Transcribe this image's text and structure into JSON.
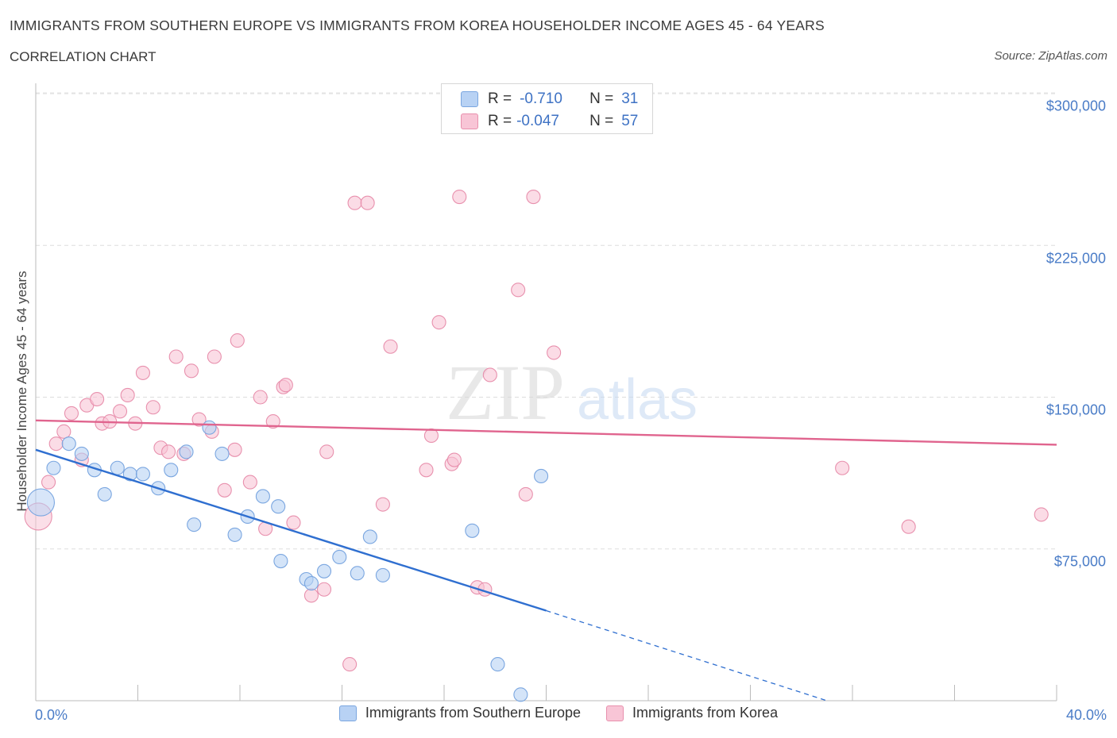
{
  "header": {
    "title": "IMMIGRANTS FROM SOUTHERN EUROPE VS IMMIGRANTS FROM KOREA HOUSEHOLDER INCOME AGES 45 - 64 YEARS",
    "subtitle": "CORRELATION CHART",
    "source": "Source: ZipAtlas.com"
  },
  "legend": {
    "r_label": "R =",
    "n_label": "N =",
    "rows": [
      {
        "r": "-0.710",
        "n": "31"
      },
      {
        "r": "-0.047",
        "n": "57"
      }
    ]
  },
  "watermark": {
    "zip": "ZIP",
    "atlas": "atlas"
  },
  "colors": {
    "blue_fill": "#b8d2f4",
    "blue_stroke": "#7aa6e0",
    "blue_line": "#2f6fd0",
    "pink_fill": "#f8c5d6",
    "pink_stroke": "#e890ad",
    "pink_line": "#e0648e",
    "tick_text": "#4a7cc7"
  },
  "chart_data": {
    "type": "scatter",
    "title": "IMMIGRANTS FROM SOUTHERN EUROPE VS IMMIGRANTS FROM KOREA HOUSEHOLDER INCOME AGES 45 - 64 YEARS",
    "xlabel": "",
    "ylabel": "Householder Income Ages 45 - 64 years",
    "x_unit": "%",
    "xlim": [
      0,
      40
    ],
    "ylim": [
      0,
      300000
    ],
    "x_tick_labels": [
      "0.0%",
      "40.0%"
    ],
    "y_ticks": [
      75000,
      150000,
      225000,
      300000
    ],
    "y_tick_labels": [
      "$75,000",
      "$150,000",
      "$225,000",
      "$300,000"
    ],
    "grid": "horizontal dashed",
    "legend_position": "top-center",
    "series": [
      {
        "name": "Immigrants from Southern Europe",
        "color": "blue",
        "R": -0.71,
        "N": 31,
        "trend": {
          "x0": 0.0,
          "y0": 124000,
          "x1": 20.0,
          "y1": 44500,
          "dashed_to_x": 31.0,
          "dashed_to_y": 0
        },
        "points": [
          {
            "x": 0.2,
            "y": 98000,
            "big": true
          },
          {
            "x": 0.7,
            "y": 115000
          },
          {
            "x": 1.3,
            "y": 127000
          },
          {
            "x": 1.8,
            "y": 122000
          },
          {
            "x": 2.3,
            "y": 114000
          },
          {
            "x": 2.7,
            "y": 102000
          },
          {
            "x": 3.2,
            "y": 115000
          },
          {
            "x": 3.7,
            "y": 112000
          },
          {
            "x": 4.2,
            "y": 112000
          },
          {
            "x": 4.8,
            "y": 105000
          },
          {
            "x": 5.3,
            "y": 114000
          },
          {
            "x": 5.9,
            "y": 123000
          },
          {
            "x": 6.2,
            "y": 87000
          },
          {
            "x": 6.8,
            "y": 135000
          },
          {
            "x": 7.3,
            "y": 122000
          },
          {
            "x": 7.8,
            "y": 82000
          },
          {
            "x": 8.3,
            "y": 91000
          },
          {
            "x": 8.9,
            "y": 101000
          },
          {
            "x": 9.5,
            "y": 96000
          },
          {
            "x": 9.6,
            "y": 69000
          },
          {
            "x": 10.6,
            "y": 60000
          },
          {
            "x": 10.8,
            "y": 58000
          },
          {
            "x": 11.3,
            "y": 64000
          },
          {
            "x": 11.9,
            "y": 71000
          },
          {
            "x": 12.6,
            "y": 63000
          },
          {
            "x": 13.1,
            "y": 81000
          },
          {
            "x": 13.6,
            "y": 62000
          },
          {
            "x": 17.1,
            "y": 84000
          },
          {
            "x": 18.1,
            "y": 18000
          },
          {
            "x": 19.0,
            "y": 3000
          },
          {
            "x": 19.8,
            "y": 111000
          }
        ]
      },
      {
        "name": "Immigrants from Korea",
        "color": "pink",
        "R": -0.047,
        "N": 57,
        "trend": {
          "x0": 0.0,
          "y0": 138500,
          "x1": 40.0,
          "y1": 126500
        },
        "points": [
          {
            "x": 0.1,
            "y": 91000,
            "big": true
          },
          {
            "x": 0.5,
            "y": 108000
          },
          {
            "x": 0.8,
            "y": 127000
          },
          {
            "x": 1.1,
            "y": 133000
          },
          {
            "x": 1.4,
            "y": 142000
          },
          {
            "x": 1.8,
            "y": 119000
          },
          {
            "x": 2.0,
            "y": 146000
          },
          {
            "x": 2.4,
            "y": 149000
          },
          {
            "x": 2.6,
            "y": 137000
          },
          {
            "x": 2.9,
            "y": 138000
          },
          {
            "x": 3.3,
            "y": 143000
          },
          {
            "x": 3.6,
            "y": 151000
          },
          {
            "x": 3.9,
            "y": 137000
          },
          {
            "x": 4.2,
            "y": 162000
          },
          {
            "x": 4.6,
            "y": 145000
          },
          {
            "x": 4.9,
            "y": 125000
          },
          {
            "x": 5.2,
            "y": 123000
          },
          {
            "x": 5.5,
            "y": 170000
          },
          {
            "x": 5.8,
            "y": 122000
          },
          {
            "x": 6.1,
            "y": 163000
          },
          {
            "x": 6.4,
            "y": 139000
          },
          {
            "x": 6.9,
            "y": 133000
          },
          {
            "x": 7.0,
            "y": 170000
          },
          {
            "x": 7.4,
            "y": 104000
          },
          {
            "x": 7.8,
            "y": 124000
          },
          {
            "x": 7.9,
            "y": 178000
          },
          {
            "x": 8.4,
            "y": 108000
          },
          {
            "x": 8.8,
            "y": 150000
          },
          {
            "x": 9.0,
            "y": 85000
          },
          {
            "x": 9.3,
            "y": 138000
          },
          {
            "x": 9.7,
            "y": 155000
          },
          {
            "x": 9.8,
            "y": 156000
          },
          {
            "x": 10.1,
            "y": 88000
          },
          {
            "x": 10.8,
            "y": 52000
          },
          {
            "x": 11.3,
            "y": 55000
          },
          {
            "x": 11.4,
            "y": 123000
          },
          {
            "x": 12.3,
            "y": 18000
          },
          {
            "x": 12.5,
            "y": 246000
          },
          {
            "x": 13.0,
            "y": 246000
          },
          {
            "x": 13.6,
            "y": 97000
          },
          {
            "x": 13.9,
            "y": 175000
          },
          {
            "x": 15.3,
            "y": 114000
          },
          {
            "x": 15.5,
            "y": 131000
          },
          {
            "x": 15.8,
            "y": 187000
          },
          {
            "x": 16.3,
            "y": 117000
          },
          {
            "x": 16.4,
            "y": 119000
          },
          {
            "x": 16.6,
            "y": 249000
          },
          {
            "x": 17.3,
            "y": 56000
          },
          {
            "x": 17.6,
            "y": 55000
          },
          {
            "x": 17.8,
            "y": 161000
          },
          {
            "x": 18.9,
            "y": 203000
          },
          {
            "x": 19.2,
            "y": 102000
          },
          {
            "x": 19.5,
            "y": 249000
          },
          {
            "x": 20.3,
            "y": 172000
          },
          {
            "x": 31.6,
            "y": 115000
          },
          {
            "x": 34.2,
            "y": 86000
          },
          {
            "x": 39.4,
            "y": 92000
          }
        ]
      }
    ]
  }
}
